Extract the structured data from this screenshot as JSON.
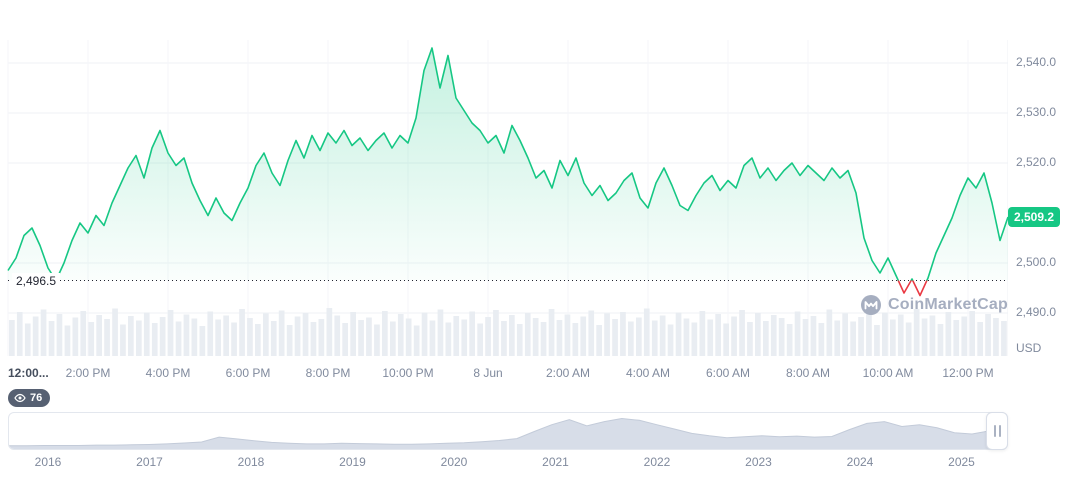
{
  "price_badge": {
    "label": "2,509.2"
  },
  "open_line": {
    "label": "2,496.5"
  },
  "y_axis": {
    "unit": "USD"
  },
  "watermark": {
    "label": "CoinMarketCap"
  },
  "watchers_badge": {
    "count": "76"
  },
  "chart_data": {
    "type": "line",
    "title": "Intraday price chart",
    "unit": "USD",
    "current_price": 2509.2,
    "open_price": 2496.5,
    "up_color": "#16c784",
    "down_color": "#ea3943",
    "grid_color": "#eff2f5",
    "volume_color": "#e9edf2",
    "y_ticks": [
      {
        "value": 2540,
        "label": "2,540.0"
      },
      {
        "value": 2530,
        "label": "2,530.0"
      },
      {
        "value": 2520,
        "label": "2,520.0"
      },
      {
        "value": 2500,
        "label": "2,500.0"
      },
      {
        "value": 2490,
        "label": "2,490.0"
      }
    ],
    "y_range": [
      2486,
      2545
    ],
    "x_tick_labels": [
      "12:00...",
      "2:00 PM",
      "4:00 PM",
      "6:00 PM",
      "8:00 PM",
      "10:00 PM",
      "8 Jun",
      "2:00 AM",
      "4:00 AM",
      "6:00 AM",
      "8:00 AM",
      "10:00 AM",
      "12:00 PM"
    ],
    "prices": [
      2498.5,
      2501.0,
      2505.5,
      2507.0,
      2503.5,
      2499.0,
      2496.5,
      2500.0,
      2504.5,
      2508.0,
      2506.0,
      2509.5,
      2507.5,
      2512.0,
      2515.5,
      2519.0,
      2521.5,
      2517.0,
      2523.0,
      2526.5,
      2522.0,
      2519.5,
      2521.0,
      2516.0,
      2512.5,
      2509.5,
      2513.0,
      2510.0,
      2508.5,
      2512.0,
      2515.0,
      2519.5,
      2522.0,
      2518.0,
      2515.5,
      2520.5,
      2524.5,
      2521.0,
      2525.5,
      2522.5,
      2526.0,
      2524.0,
      2526.5,
      2523.5,
      2525.0,
      2522.5,
      2524.5,
      2526.0,
      2523.0,
      2525.5,
      2524.0,
      2529.0,
      2538.5,
      2543.0,
      2535.0,
      2541.5,
      2533.0,
      2530.5,
      2528.0,
      2526.5,
      2524.0,
      2525.5,
      2522.0,
      2527.5,
      2524.5,
      2521.0,
      2517.0,
      2518.5,
      2515.0,
      2520.5,
      2517.5,
      2521.0,
      2516.0,
      2513.5,
      2515.5,
      2512.5,
      2514.0,
      2516.5,
      2518.0,
      2513.0,
      2511.0,
      2516.0,
      2519.0,
      2515.5,
      2511.5,
      2510.5,
      2513.5,
      2516.0,
      2517.5,
      2514.5,
      2516.5,
      2515.0,
      2519.5,
      2521.0,
      2517.0,
      2519.0,
      2516.5,
      2518.5,
      2520.0,
      2517.5,
      2519.5,
      2518.0,
      2516.5,
      2519.0,
      2517.0,
      2518.5,
      2514.0,
      2505.0,
      2500.5,
      2498.0,
      2501.0,
      2497.5,
      2494.0,
      2496.8,
      2493.5,
      2497.0,
      2502.0,
      2505.5,
      2509.0,
      2513.5,
      2517.0,
      2515.0,
      2518.0,
      2512.0,
      2504.5,
      2509.2
    ],
    "volumes": [
      0.72,
      0.88,
      0.65,
      0.79,
      0.93,
      0.7,
      0.84,
      0.61,
      0.77,
      0.9,
      0.68,
      0.82,
      0.74,
      0.95,
      0.63,
      0.8,
      0.71,
      0.87,
      0.66,
      0.78,
      0.92,
      0.69,
      0.83,
      0.75,
      0.6,
      0.89,
      0.73,
      0.81,
      0.67,
      0.94,
      0.76,
      0.64,
      0.85,
      0.7,
      0.91,
      0.62,
      0.79,
      0.86,
      0.68,
      0.74,
      0.96,
      0.81,
      0.66,
      0.88,
      0.72,
      0.77,
      0.63,
      0.9,
      0.69,
      0.84,
      0.75,
      0.61,
      0.87,
      0.71,
      0.93,
      0.67,
      0.8,
      0.73,
      0.89,
      0.65,
      0.78,
      0.92,
      0.7,
      0.82,
      0.64,
      0.86,
      0.76,
      0.68,
      0.94,
      0.72,
      0.83,
      0.66,
      0.79,
      0.91,
      0.62,
      0.85,
      0.74,
      0.88,
      0.69,
      0.77,
      0.95,
      0.71,
      0.81,
      0.63,
      0.87,
      0.75,
      0.67,
      0.9,
      0.73,
      0.84,
      0.65,
      0.79,
      0.92,
      0.68,
      0.86,
      0.7,
      0.82,
      0.76,
      0.64,
      0.89,
      0.74,
      0.8,
      0.66,
      0.93,
      0.71,
      0.85,
      0.69,
      0.78,
      0.91,
      0.62,
      0.87,
      0.73,
      0.83,
      0.67,
      0.94,
      0.75,
      0.81,
      0.64,
      0.88,
      0.72,
      0.79,
      0.9,
      0.68,
      0.84,
      0.76,
      0.7
    ],
    "navigator": {
      "years": [
        "2016",
        "2017",
        "2018",
        "2019",
        "2020",
        "2021",
        "2022",
        "2023",
        "2024",
        "2025"
      ],
      "values": [
        0.04,
        0.04,
        0.05,
        0.05,
        0.05,
        0.06,
        0.06,
        0.07,
        0.08,
        0.1,
        0.13,
        0.16,
        0.32,
        0.26,
        0.2,
        0.15,
        0.12,
        0.1,
        0.1,
        0.12,
        0.11,
        0.1,
        0.09,
        0.09,
        0.1,
        0.12,
        0.14,
        0.17,
        0.21,
        0.27,
        0.5,
        0.72,
        0.88,
        0.68,
        0.82,
        0.92,
        0.86,
        0.72,
        0.58,
        0.44,
        0.36,
        0.3,
        0.33,
        0.36,
        0.33,
        0.35,
        0.32,
        0.34,
        0.56,
        0.76,
        0.82,
        0.66,
        0.72,
        0.62,
        0.46,
        0.42,
        0.52,
        0.64
      ]
    }
  }
}
